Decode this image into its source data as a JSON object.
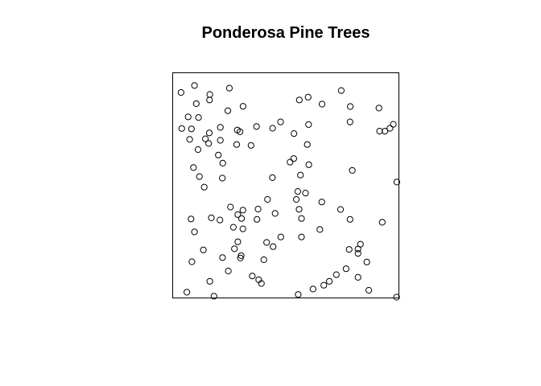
{
  "chart_data": {
    "type": "scatter",
    "title": "Ponderosa Pine Trees",
    "xlabel": "",
    "ylabel": "",
    "xlim": [
      0,
      1
    ],
    "ylim": [
      0,
      1
    ],
    "axes_visible": false,
    "tick_labels": false,
    "grid": false,
    "legend": "none",
    "marker": "open-circle",
    "points": [
      [
        0.018,
        0.934
      ],
      [
        0.079,
        0.966
      ],
      [
        0.148,
        0.925
      ],
      [
        0.237,
        0.954
      ],
      [
        0.05,
        0.823
      ],
      [
        0.097,
        0.82
      ],
      [
        0.021,
        0.77
      ],
      [
        0.065,
        0.768
      ],
      [
        0.057,
        0.72
      ],
      [
        0.095,
        0.674
      ],
      [
        0.146,
        0.75
      ],
      [
        0.147,
        0.9
      ],
      [
        0.087,
        0.883
      ],
      [
        0.23,
        0.851
      ],
      [
        0.299,
        0.871
      ],
      [
        0.36,
        0.779
      ],
      [
        0.285,
        0.755
      ],
      [
        0.273,
        0.763
      ],
      [
        0.196,
        0.775
      ],
      [
        0.128,
        0.723
      ],
      [
        0.143,
        0.702
      ],
      [
        0.196,
        0.716
      ],
      [
        0.27,
        0.697
      ],
      [
        0.335,
        0.693
      ],
      [
        0.187,
        0.649
      ],
      [
        0.207,
        0.612
      ],
      [
        0.074,
        0.592
      ],
      [
        0.101,
        0.551
      ],
      [
        0.205,
        0.544
      ],
      [
        0.123,
        0.503
      ],
      [
        0.433,
        0.771
      ],
      [
        0.469,
        0.8
      ],
      [
        0.53,
        0.747
      ],
      [
        0.59,
        0.697
      ],
      [
        0.596,
        0.788
      ],
      [
        0.554,
        0.9
      ],
      [
        0.594,
        0.913
      ],
      [
        0.657,
        0.881
      ],
      [
        0.744,
        0.943
      ],
      [
        0.785,
        0.87
      ],
      [
        0.915,
        0.863
      ],
      [
        0.784,
        0.8
      ],
      [
        0.918,
        0.758
      ],
      [
        0.942,
        0.758
      ],
      [
        0.965,
        0.771
      ],
      [
        0.98,
        0.789
      ],
      [
        0.512,
        0.617
      ],
      [
        0.529,
        0.633
      ],
      [
        0.597,
        0.605
      ],
      [
        0.559,
        0.558
      ],
      [
        0.432,
        0.546
      ],
      [
        0.547,
        0.483
      ],
      [
        0.582,
        0.476
      ],
      [
        0.41,
        0.447
      ],
      [
        0.54,
        0.447
      ],
      [
        0.656,
        0.435
      ],
      [
        0.794,
        0.579
      ],
      [
        0.996,
        0.526
      ],
      [
        0.242,
        0.412
      ],
      [
        0.298,
        0.398
      ],
      [
        0.275,
        0.378
      ],
      [
        0.292,
        0.36
      ],
      [
        0.367,
        0.403
      ],
      [
        0.444,
        0.383
      ],
      [
        0.553,
        0.402
      ],
      [
        0.564,
        0.36
      ],
      [
        0.741,
        0.401
      ],
      [
        0.784,
        0.356
      ],
      [
        0.155,
        0.363
      ],
      [
        0.194,
        0.353
      ],
      [
        0.063,
        0.358
      ],
      [
        0.079,
        0.299
      ],
      [
        0.255,
        0.32
      ],
      [
        0.298,
        0.313
      ],
      [
        0.362,
        0.356
      ],
      [
        0.47,
        0.276
      ],
      [
        0.564,
        0.276
      ],
      [
        0.647,
        0.31
      ],
      [
        0.93,
        0.343
      ],
      [
        0.275,
        0.254
      ],
      [
        0.26,
        0.222
      ],
      [
        0.287,
        0.18
      ],
      [
        0.29,
        0.191
      ],
      [
        0.406,
        0.251
      ],
      [
        0.435,
        0.232
      ],
      [
        0.393,
        0.172
      ],
      [
        0.067,
        0.163
      ],
      [
        0.119,
        0.217
      ],
      [
        0.206,
        0.182
      ],
      [
        0.232,
        0.121
      ],
      [
        0.341,
        0.098
      ],
      [
        0.37,
        0.081
      ],
      [
        0.382,
        0.064
      ],
      [
        0.148,
        0.074
      ],
      [
        0.044,
        0.024
      ],
      [
        0.167,
        0.006
      ],
      [
        0.549,
        0.014
      ],
      [
        0.616,
        0.039
      ],
      [
        0.665,
        0.056
      ],
      [
        0.69,
        0.074
      ],
      [
        0.722,
        0.104
      ],
      [
        0.766,
        0.131
      ],
      [
        0.82,
        0.092
      ],
      [
        0.86,
        0.162
      ],
      [
        0.82,
        0.201
      ],
      [
        0.82,
        0.221
      ],
      [
        0.831,
        0.243
      ],
      [
        0.78,
        0.219
      ],
      [
        0.869,
        0.033
      ],
      [
        0.995,
        0.002
      ]
    ]
  }
}
